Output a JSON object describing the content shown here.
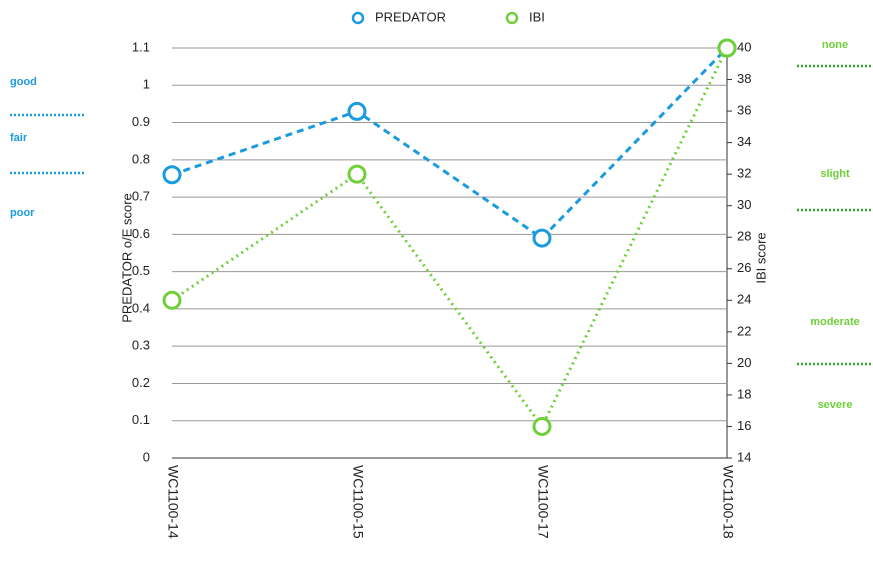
{
  "chart_data": {
    "type": "line",
    "categories": [
      "WC1100-14",
      "WC1100-15",
      "WC1100-17",
      "WC1100-18"
    ],
    "series": [
      {
        "name": "PREDATOR",
        "color": "#1a9be0",
        "dash": "dashed",
        "values": [
          0.76,
          0.93,
          0.59,
          1.1
        ]
      },
      {
        "name": "IBI",
        "color": "#6fd03a",
        "dash": "dotted",
        "axis": "y2",
        "values": [
          24,
          32,
          16,
          40
        ]
      }
    ],
    "ylabel": "PREDATOR o/E score",
    "y2label": "IBI score",
    "ylim": [
      0,
      1.1
    ],
    "yticks": [
      0,
      0.1,
      0.2,
      0.3,
      0.4,
      0.5,
      0.6,
      0.7,
      0.8,
      0.9,
      1,
      1.1
    ],
    "y2lim": [
      14,
      40
    ],
    "y2ticks": [
      14,
      16,
      18,
      20,
      22,
      24,
      26,
      28,
      30,
      32,
      34,
      36,
      38,
      40
    ],
    "grid": true,
    "legend": "top",
    "left_annotations": [
      "good",
      "fair",
      "poor"
    ],
    "right_annotations": [
      "none",
      "slight",
      "moderate",
      "severe"
    ]
  }
}
